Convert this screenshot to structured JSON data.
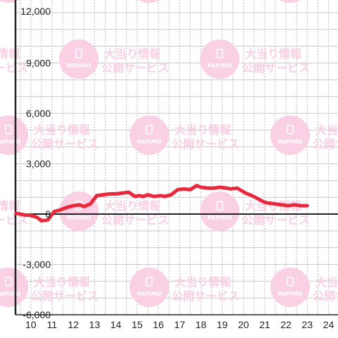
{
  "chart_data": {
    "type": "line",
    "title": "",
    "xlabel": "",
    "ylabel": "",
    "x_ticks": [
      "10",
      "11",
      "12",
      "13",
      "14",
      "15",
      "16",
      "17",
      "18",
      "19",
      "20",
      "21",
      "22",
      "23",
      "24"
    ],
    "y_ticks": [
      "12,000",
      "9,000",
      "6,000",
      "3,000",
      "0",
      "-3,000",
      "-6,000"
    ],
    "y_tick_values": [
      12000,
      9000,
      6000,
      3000,
      0,
      -3000,
      -6000
    ],
    "xlim": [
      9.25,
      24.5
    ],
    "ylim": [
      -6000,
      12000
    ],
    "grid": true,
    "series": [
      {
        "color": "#e8283c",
        "x": [
          9.3,
          9.7,
          10.0,
          10.3,
          10.5,
          10.8,
          11.1,
          11.4,
          11.7,
          12.0,
          12.3,
          12.5,
          12.8,
          13.1,
          13.4,
          13.7,
          14.0,
          14.3,
          14.6,
          14.9,
          15.1,
          15.3,
          15.5,
          15.8,
          16.1,
          16.3,
          16.6,
          16.9,
          17.2,
          17.5,
          17.8,
          18.0,
          18.3,
          18.6,
          18.9,
          19.2,
          19.4,
          19.7,
          19.9,
          20.1,
          20.4,
          20.7,
          21.0,
          21.2,
          21.5,
          21.8,
          22.1,
          22.4,
          22.7,
          23.0
        ],
        "y": [
          50,
          -50,
          -80,
          -200,
          -400,
          -350,
          150,
          250,
          400,
          500,
          550,
          450,
          600,
          1100,
          1150,
          1200,
          1200,
          1250,
          1300,
          1050,
          1100,
          1050,
          1150,
          1050,
          1100,
          1050,
          1150,
          1450,
          1500,
          1450,
          1700,
          1600,
          1550,
          1550,
          1600,
          1550,
          1500,
          1550,
          1400,
          1250,
          1100,
          900,
          700,
          650,
          600,
          550,
          500,
          550,
          500,
          500
        ]
      }
    ]
  },
  "watermark": {
    "title": "大当り情報",
    "subtitle": "公開サービス",
    "logo": "PAPIMO",
    "color": "#f9d0e4"
  }
}
